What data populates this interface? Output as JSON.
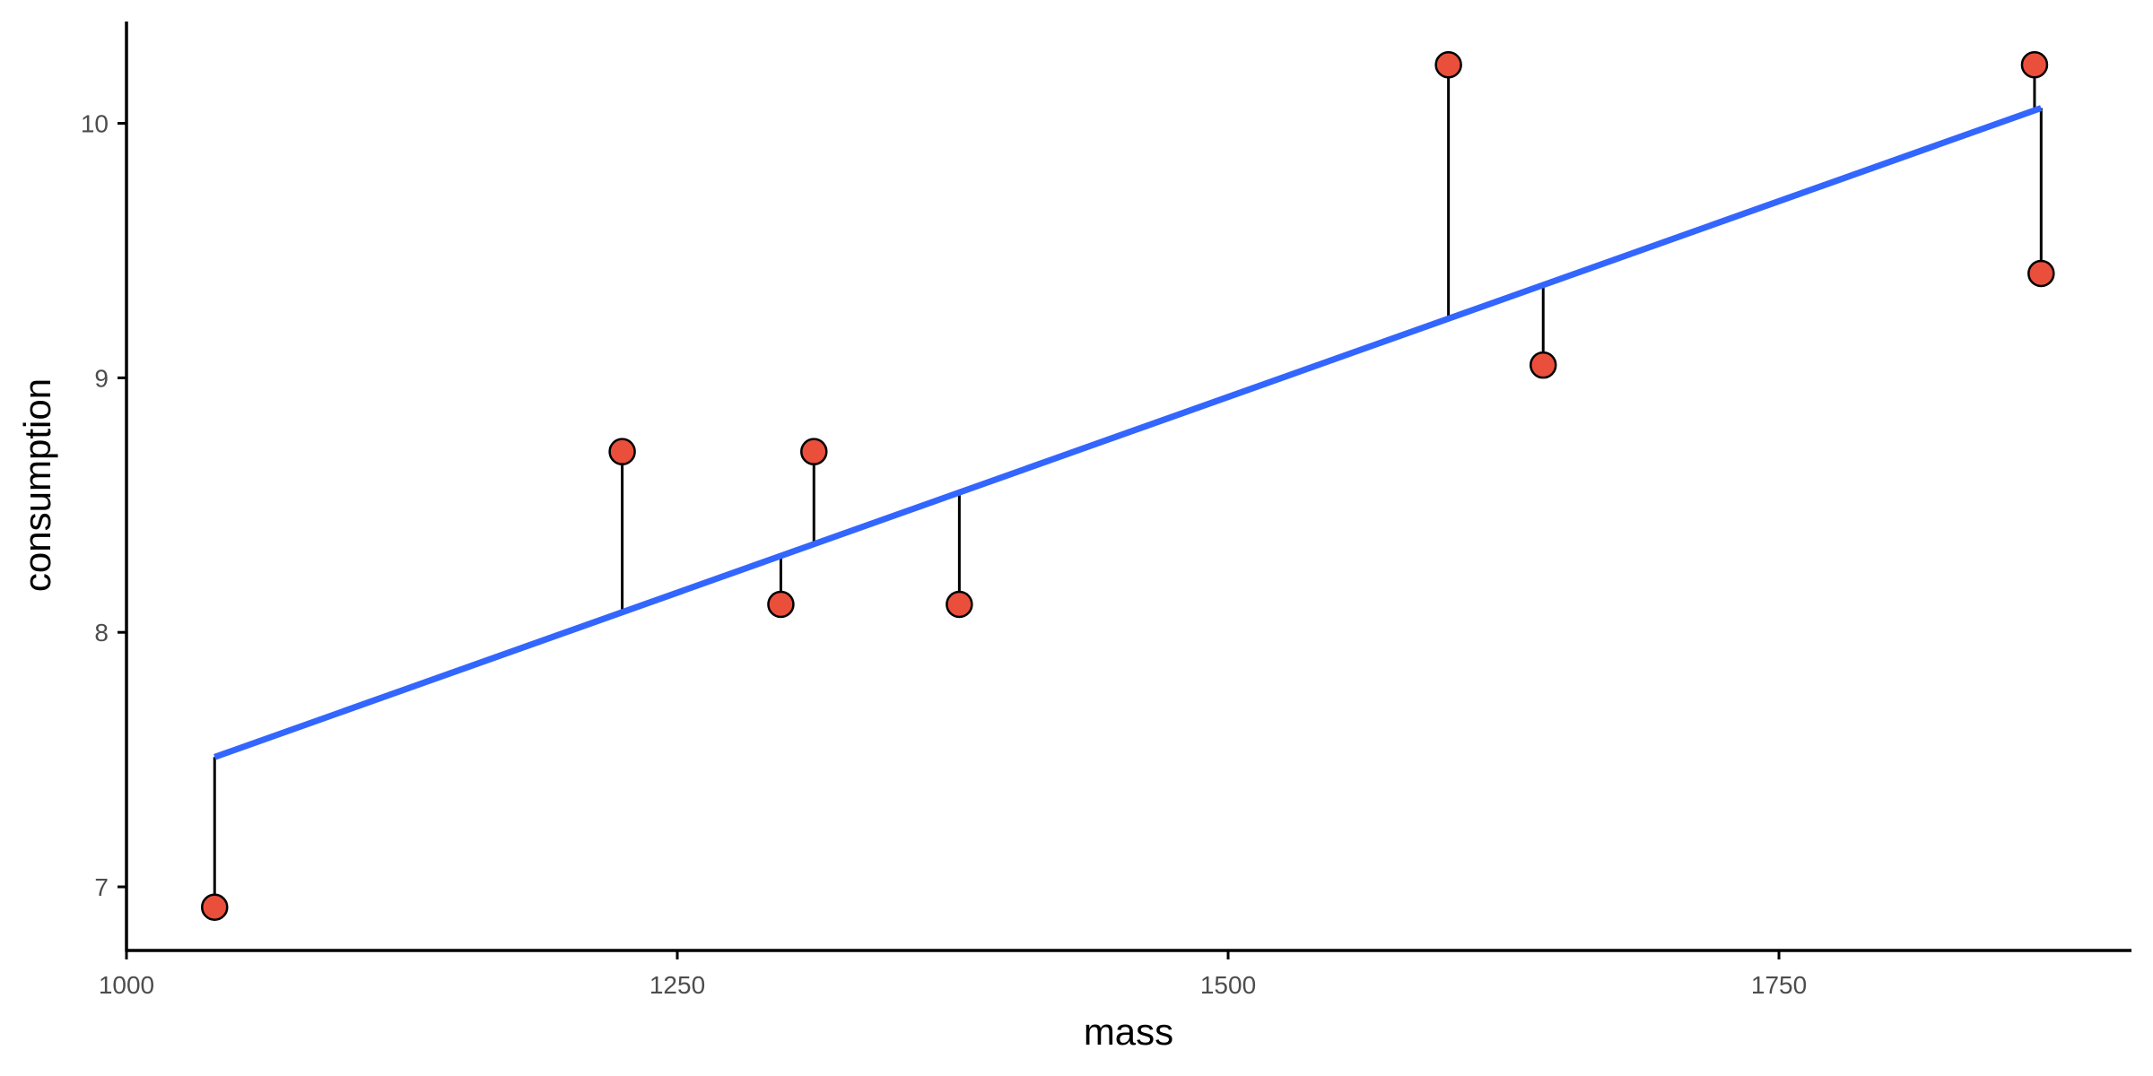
{
  "chart_data": {
    "type": "scatter",
    "title": "",
    "xlabel": "mass",
    "ylabel": "consumption",
    "xlim": [
      1000,
      1910
    ],
    "ylim": [
      6.75,
      10.4
    ],
    "x_ticks": [
      1000,
      1250,
      1500,
      1750
    ],
    "x_tick_labels": [
      "1000",
      "1250",
      "1500",
      "1750"
    ],
    "y_ticks": [
      7,
      8,
      9,
      10
    ],
    "y_tick_labels": [
      "7",
      "8",
      "9",
      "10"
    ],
    "grid": false,
    "legend": "none",
    "points": [
      {
        "x": 1040,
        "y": 6.92,
        "fitted": 7.51
      },
      {
        "x": 1225,
        "y": 8.71,
        "fitted": 8.08
      },
      {
        "x": 1297,
        "y": 8.11,
        "fitted": 8.3
      },
      {
        "x": 1312,
        "y": 8.71,
        "fitted": 8.35
      },
      {
        "x": 1378,
        "y": 8.11,
        "fitted": 8.56
      },
      {
        "x": 1600,
        "y": 10.23,
        "fitted": 9.23
      },
      {
        "x": 1643,
        "y": 9.05,
        "fitted": 9.37
      },
      {
        "x": 1866,
        "y": 10.23,
        "fitted": 10.06
      },
      {
        "x": 1869,
        "y": 9.41,
        "fitted": 10.06
      }
    ],
    "fit_line": {
      "x": [
        1040,
        1869
      ],
      "y": [
        7.51,
        10.06
      ]
    },
    "colors": {
      "points": "#ea4f3c",
      "point_outline": "#000000",
      "fit_line": "#3366ff",
      "residuals": "#000000",
      "axes": "#000000",
      "tick_labels": "#4d4d4d"
    }
  }
}
